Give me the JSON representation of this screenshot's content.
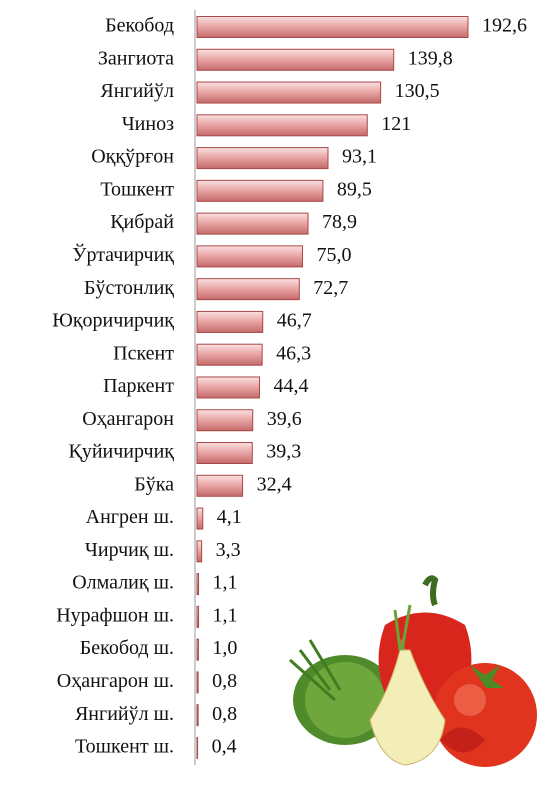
{
  "chart_data": {
    "type": "bar",
    "orientation": "horizontal",
    "categories": [
      "Бекобод",
      "Зангиота",
      "Янгийўл",
      "Чиноз",
      "Оққўрғон",
      "Тошкент",
      "Қибрай",
      "Ўртачирчиқ",
      "Бўстонлиқ",
      "Юқоричирчиқ",
      "Пскент",
      "Паркент",
      "Оҳангарон",
      "Қуйичирчиқ",
      "Бўка",
      "Ангрен ш.",
      "Чирчиқ ш.",
      "Олмалиқ ш.",
      "Нурафшон ш.",
      "Бекобод ш.",
      "Оҳангарон ш.",
      "Янгийўл ш.",
      "Тошкент ш."
    ],
    "values": [
      192.6,
      139.8,
      130.5,
      121,
      93.1,
      89.5,
      78.9,
      75.0,
      72.7,
      46.7,
      46.3,
      44.4,
      39.6,
      39.3,
      32.4,
      4.1,
      3.3,
      1.1,
      1.1,
      1.0,
      0.8,
      0.8,
      0.4
    ],
    "value_labels": [
      "192,6",
      "139,8",
      "130,5",
      "121",
      "93,1",
      "89,5",
      "78,9",
      "75,0",
      "72,7",
      "46,7",
      "46,3",
      "44,4",
      "39,6",
      "39,3",
      "32,4",
      "4,1",
      "3,3",
      "1,1",
      "1,1",
      "1,0",
      "0,8",
      "0,8",
      "0,4"
    ],
    "color": "#e8a3a3"
  }
}
